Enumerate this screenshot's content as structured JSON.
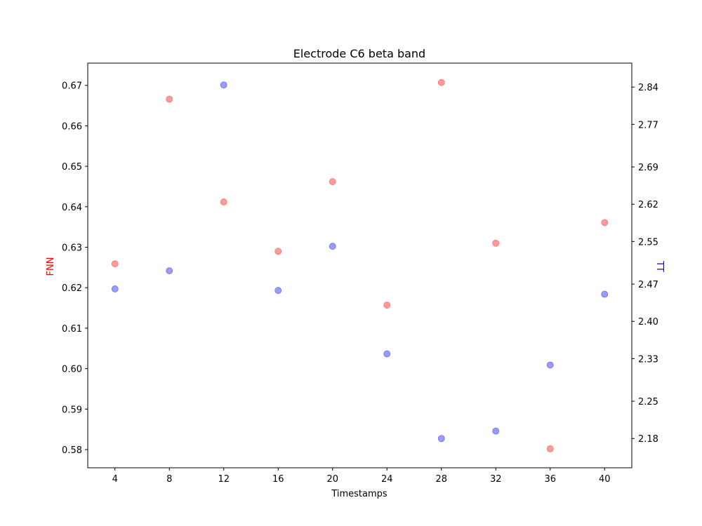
{
  "chart_data": {
    "type": "scatter",
    "title": "Electrode C6 beta band",
    "xlabel": "Timestamps",
    "ylabel": "FNN",
    "ylabel_right": "TT",
    "x_ticks": [
      "4",
      "8",
      "12",
      "16",
      "20",
      "24",
      "28",
      "32",
      "36",
      "40"
    ],
    "xlim": [
      2,
      42
    ],
    "y_ticks": [
      "0.58",
      "0.59",
      "0.60",
      "0.61",
      "0.62",
      "0.63",
      "0.64",
      "0.65",
      "0.66",
      "0.67"
    ],
    "ylim": [
      0.5755,
      0.6755
    ],
    "y2_ticks": [
      "2.18",
      "2.25",
      "2.33",
      "2.40",
      "2.47",
      "2.55",
      "2.62",
      "2.69",
      "2.77",
      "2.84"
    ],
    "y2lim": [
      2.125,
      2.885
    ],
    "grid": false,
    "series": [
      {
        "name": "FNN",
        "axis": "left",
        "color": "#ff9a9a",
        "points": [
          {
            "x": 4,
            "y": 0.6259
          },
          {
            "x": 8,
            "y": 0.6666
          },
          {
            "x": 12,
            "y": 0.6412
          },
          {
            "x": 16,
            "y": 0.629
          },
          {
            "x": 20,
            "y": 0.6462
          },
          {
            "x": 24,
            "y": 0.6157
          },
          {
            "x": 28,
            "y": 0.6707
          },
          {
            "x": 32,
            "y": 0.631
          },
          {
            "x": 36,
            "y": 0.5802
          },
          {
            "x": 40,
            "y": 0.6361
          }
        ]
      },
      {
        "name": "TT",
        "axis": "right",
        "color": "#9a9aff",
        "points": [
          {
            "x": 4,
            "y": 2.461
          },
          {
            "x": 8,
            "y": 2.495
          },
          {
            "x": 12,
            "y": 2.844
          },
          {
            "x": 16,
            "y": 2.458
          },
          {
            "x": 20,
            "y": 2.541
          },
          {
            "x": 24,
            "y": 2.339
          },
          {
            "x": 28,
            "y": 2.18
          },
          {
            "x": 32,
            "y": 2.194
          },
          {
            "x": 36,
            "y": 2.318
          },
          {
            "x": 40,
            "y": 2.451
          }
        ]
      }
    ]
  }
}
